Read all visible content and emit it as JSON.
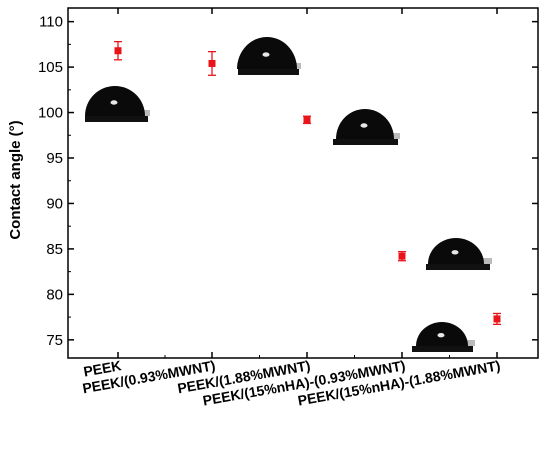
{
  "chart_data": {
    "type": "scatter",
    "title": "",
    "xlabel": "",
    "ylabel": "Contact angle (°)",
    "ylim": [
      73,
      111.5
    ],
    "yticks": [
      75,
      80,
      85,
      90,
      95,
      100,
      105,
      110
    ],
    "grid": false,
    "legend": "none",
    "categories": [
      "PEEK",
      "PEEK/(0.93%MWNT)",
      "PEEK/(1.88%MWNT)",
      "PEEK/(15%nHA)-(0.93%MWNT)",
      "PEEK/(15%nHA)-(1.88%MWNT)"
    ],
    "series": [
      {
        "values": [
          106.8,
          105.4,
          99.2,
          84.2,
          77.3
        ],
        "errors": [
          1.0,
          1.3,
          0.4,
          0.5,
          0.6
        ],
        "color": "#e8141a"
      }
    ],
    "droplets": [
      "droplet-image",
      "droplet-image",
      "droplet-image",
      "droplet-image",
      "droplet-image"
    ]
  }
}
